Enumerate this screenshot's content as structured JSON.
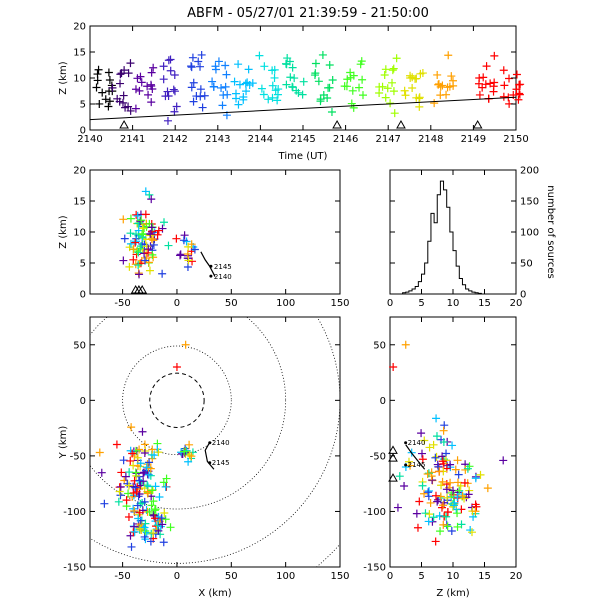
{
  "title": "ABFM - 05/27/01 21:39:59 - 21:50:00",
  "chart_data": [
    {
      "id": "time_height",
      "type": "scatter",
      "xlabel": "Time (UT)",
      "ylabel": "Z (km)",
      "xlim": [
        2140,
        2150
      ],
      "ylim": [
        0,
        20
      ],
      "xticks": [
        2140,
        2141,
        2142,
        2143,
        2144,
        2145,
        2146,
        2147,
        2148,
        2149,
        2150
      ],
      "yticks": [
        0,
        5,
        10,
        15,
        20
      ],
      "color_encoding": "time (purple to red)",
      "trend_line": {
        "x": [
          2140,
          2150
        ],
        "y": [
          2.0,
          6.3
        ]
      },
      "cluster_series": [
        {
          "x": 2140.3,
          "y_center": 8.5,
          "y_spread": 2.5,
          "color": "#000000"
        },
        {
          "x": 2140.75,
          "y_center": 9,
          "y_spread": 3,
          "color": "#3a006f"
        },
        {
          "x": 2141.3,
          "y_center": 9,
          "y_spread": 3,
          "color": "#5a00a0"
        },
        {
          "x": 2141.9,
          "y_center": 9,
          "y_spread": 3,
          "color": "#4020c0"
        },
        {
          "x": 2142.5,
          "y_center": 9,
          "y_spread": 3,
          "color": "#2040e0"
        },
        {
          "x": 2143.0,
          "y_center": 8.5,
          "y_spread": 2.5,
          "color": "#1080ff"
        },
        {
          "x": 2143.6,
          "y_center": 8.5,
          "y_spread": 2.5,
          "color": "#00c0ff"
        },
        {
          "x": 2144.2,
          "y_center": 9,
          "y_spread": 2.5,
          "color": "#00e0e0"
        },
        {
          "x": 2144.8,
          "y_center": 9,
          "y_spread": 2.5,
          "color": "#00e0a0"
        },
        {
          "x": 2145.5,
          "y_center": 9,
          "y_spread": 2.5,
          "color": "#00e060"
        },
        {
          "x": 2146.2,
          "y_center": 9,
          "y_spread": 2.5,
          "color": "#40ff20"
        },
        {
          "x": 2147.0,
          "y_center": 9,
          "y_spread": 2.5,
          "color": "#a0ff00"
        },
        {
          "x": 2147.6,
          "y_center": 9,
          "y_spread": 2.5,
          "color": "#e0e000"
        },
        {
          "x": 2148.3,
          "y_center": 9,
          "y_spread": 2.5,
          "color": "#ffa000"
        },
        {
          "x": 2149.3,
          "y_center": 8.5,
          "y_spread": 2,
          "color": "#ff0000"
        },
        {
          "x": 2149.9,
          "y_center": 8.5,
          "y_spread": 2,
          "color": "#ff0000"
        }
      ],
      "station_triangles_x": [
        2140.8,
        2145.8,
        2147.3,
        2149.1
      ]
    },
    {
      "id": "x_height",
      "type": "scatter",
      "xlabel": "",
      "ylabel": "Z (km)",
      "xlim": [
        -80,
        150
      ],
      "ylim": [
        0,
        20
      ],
      "xticks": [
        -50,
        0,
        50,
        100,
        150
      ],
      "yticks": [
        0,
        5,
        10,
        15,
        20
      ],
      "annotations": [
        "2145",
        "2140"
      ],
      "clusters": [
        {
          "x": -30,
          "z": 8.5,
          "sx": 8,
          "sz": 2.5
        },
        {
          "x": 10,
          "z": 7,
          "sx": 4,
          "sz": 1.2
        }
      ]
    },
    {
      "id": "histogram",
      "type": "bar",
      "xlabel": "",
      "ylabel": "number of sources",
      "xlim": [
        0,
        20
      ],
      "ylim": [
        0,
        200
      ],
      "xticks": [
        0,
        5,
        10,
        15,
        20
      ],
      "yticks": [
        0,
        50,
        100,
        150,
        200
      ],
      "bin_edges": [
        2,
        2.5,
        3,
        3.5,
        4,
        4.5,
        5,
        5.5,
        6,
        6.5,
        7,
        7.5,
        8,
        8.5,
        9,
        9.5,
        10,
        10.5,
        11,
        11.5,
        12,
        12.5,
        13,
        13.5,
        14,
        14.5
      ],
      "values": [
        2,
        3,
        5,
        8,
        12,
        20,
        32,
        50,
        85,
        130,
        115,
        160,
        182,
        168,
        140,
        100,
        70,
        45,
        25,
        15,
        8,
        5,
        3,
        2,
        1
      ]
    },
    {
      "id": "plan_view",
      "type": "scatter",
      "xlabel": "X (km)",
      "ylabel": "Y (km)",
      "xlim": [
        -80,
        150
      ],
      "ylim": [
        -150,
        75
      ],
      "xticks": [
        -50,
        0,
        50,
        100,
        150
      ],
      "yticks": [
        -150,
        -100,
        -50,
        0,
        50
      ],
      "range_rings_km": [
        25,
        50,
        100,
        150,
        200
      ],
      "annotations": [
        "2140",
        "2145"
      ],
      "clusters": [
        {
          "x": -35,
          "y": -75,
          "sx": 12,
          "sy": 20
        },
        {
          "x": -25,
          "y": -110,
          "sx": 8,
          "sy": 12
        },
        {
          "x": 10,
          "y": -48,
          "sx": 4,
          "sy": 3
        }
      ]
    },
    {
      "id": "z_y",
      "type": "scatter",
      "xlabel": "Z (km)",
      "ylabel": "",
      "xlim": [
        0,
        20
      ],
      "ylim": [
        -150,
        75
      ],
      "xticks": [
        0,
        5,
        10,
        15,
        20
      ],
      "yticks": [
        -150,
        -100,
        -50,
        0,
        50
      ],
      "annotations": [
        "2140",
        "2145"
      ],
      "clusters": [
        {
          "z": 8.5,
          "y": -70,
          "sz": 3,
          "sy": 20
        },
        {
          "z": 10,
          "y": -100,
          "sz": 3,
          "sy": 15
        }
      ]
    }
  ]
}
